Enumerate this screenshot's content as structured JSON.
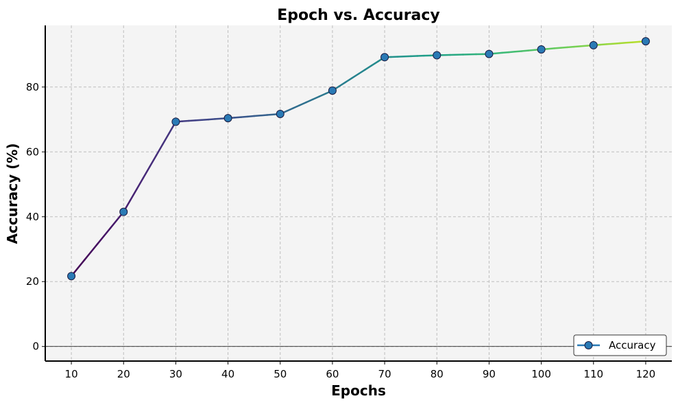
{
  "chart_data": {
    "type": "line",
    "title": "Epoch vs. Accuracy",
    "xlabel": "Epochs",
    "ylabel": "Accuracy (%)",
    "x": [
      10,
      20,
      30,
      40,
      50,
      60,
      70,
      80,
      90,
      100,
      110,
      120
    ],
    "series": [
      {
        "name": "Accuracy",
        "values": [
          21.7,
          41.5,
          69.3,
          70.4,
          71.7,
          78.9,
          89.2,
          89.8,
          90.2,
          91.6,
          92.9,
          94.1
        ],
        "marker_color": "#2a7ab5"
      }
    ],
    "xlim": [
      5,
      125
    ],
    "ylim": [
      -4.5,
      99
    ],
    "xticks": [
      10,
      20,
      30,
      40,
      50,
      60,
      70,
      80,
      90,
      100,
      110,
      120
    ],
    "yticks": [
      0,
      20,
      40,
      60,
      80
    ],
    "grid": true,
    "legend_position": "bottom-right",
    "line_colormap": "viridis",
    "background_color": "#f4f4f4",
    "zero_line": true
  }
}
